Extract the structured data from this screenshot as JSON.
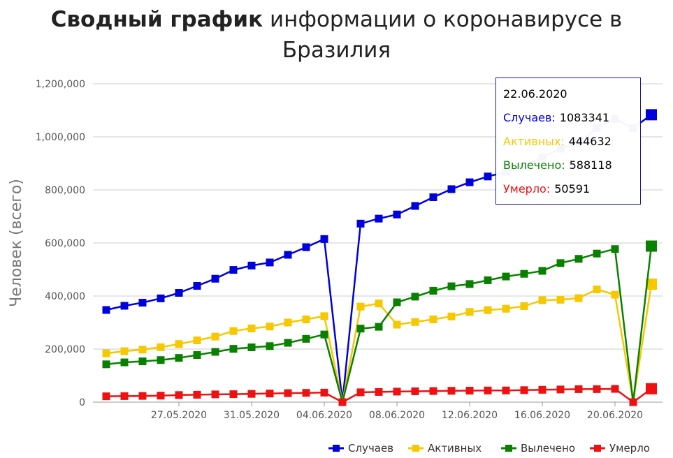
{
  "title": {
    "bold": "Сводный график",
    "rest": "информации о коронавирусе в Бразилия"
  },
  "chart_data": {
    "type": "line",
    "ylabel": "Человек (всего)",
    "ylim": [
      0,
      1200000
    ],
    "yticks": [
      0,
      200000,
      400000,
      600000,
      800000,
      1000000,
      1200000
    ],
    "ytick_labels": [
      "0",
      "200,000",
      "400,000",
      "600,000",
      "800,000",
      "1,000,000",
      "1,200,000"
    ],
    "x": [
      "23.05.2020",
      "24.05.2020",
      "25.05.2020",
      "26.05.2020",
      "27.05.2020",
      "28.05.2020",
      "29.05.2020",
      "30.05.2020",
      "31.05.2020",
      "01.06.2020",
      "02.06.2020",
      "03.06.2020",
      "04.06.2020",
      "05.06.2020",
      "06.06.2020",
      "07.06.2020",
      "08.06.2020",
      "09.06.2020",
      "10.06.2020",
      "11.06.2020",
      "12.06.2020",
      "13.06.2020",
      "14.06.2020",
      "15.06.2020",
      "16.06.2020",
      "17.06.2020",
      "18.06.2020",
      "19.06.2020",
      "20.06.2020",
      "21.06.2020",
      "22.06.2020"
    ],
    "xtick_labels": [
      "27.05.2020",
      "31.05.2020",
      "04.06.2020",
      "08.06.2020",
      "12.06.2020",
      "16.06.2020",
      "20.06.2020"
    ],
    "grid": true,
    "legend": "bottom-right",
    "series": [
      {
        "name": "Случаев",
        "color": "#0000dd",
        "values": [
          347398,
          363211,
          374898,
          391222,
          411821,
          438238,
          465166,
          498440,
          514849,
          526447,
          555383,
          584016,
          614941,
          0,
          672846,
          691758,
          707412,
          739503,
          772416,
          802828,
          828810,
          850514,
          867624,
          888271,
          923189,
          955377,
          978142,
          1032913,
          1067579,
          1032913,
          1083341
        ]
      },
      {
        "name": "Активных",
        "color": "#f5c800",
        "values": [
          184000,
          192000,
          198000,
          207000,
          219000,
          233000,
          247000,
          268000,
          278000,
          285000,
          300000,
          312000,
          324000,
          0,
          360000,
          372000,
          292000,
          302000,
          312000,
          323000,
          340000,
          347000,
          352000,
          362000,
          384000,
          386000,
          392000,
          425000,
          405000,
          0,
          444632
        ]
      },
      {
        "name": "Вылечено",
        "color": "#0a8000",
        "values": [
          142587,
          149911,
          153833,
          158593,
          166647,
          177604,
          189476,
          200892,
          206555,
          211080,
          223638,
          238617,
          254963,
          0,
          277149,
          283952,
          376336,
          397638,
          419845,
          436714,
          445123,
          459436,
          473485,
          483678,
          494852,
          524125,
          540095,
          560000,
          577000,
          0,
          588118
        ]
      },
      {
        "name": "Умерло",
        "color": "#ee1111",
        "values": [
          22013,
          22666,
          23473,
          24512,
          26754,
          27878,
          29314,
          30046,
          31199,
          32548,
          34021,
          35026,
          35930,
          0,
          37134,
          38406,
          39680,
          40919,
          41828,
          42720,
          43389,
          43959,
          44118,
          45241,
          46510,
          47748,
          48954,
          49090,
          49976,
          0,
          50591
        ]
      }
    ]
  },
  "tooltip": {
    "date": "22.06.2020",
    "rows": [
      {
        "label": "Случаев:",
        "value": "1083341",
        "color": "#0000dd"
      },
      {
        "label": "Активных:",
        "value": "444632",
        "color": "#f5c800"
      },
      {
        "label": "Вылечено:",
        "value": "588118",
        "color": "#0a8000"
      },
      {
        "label": "Умерло:",
        "value": "50591",
        "color": "#ee1111"
      }
    ]
  }
}
